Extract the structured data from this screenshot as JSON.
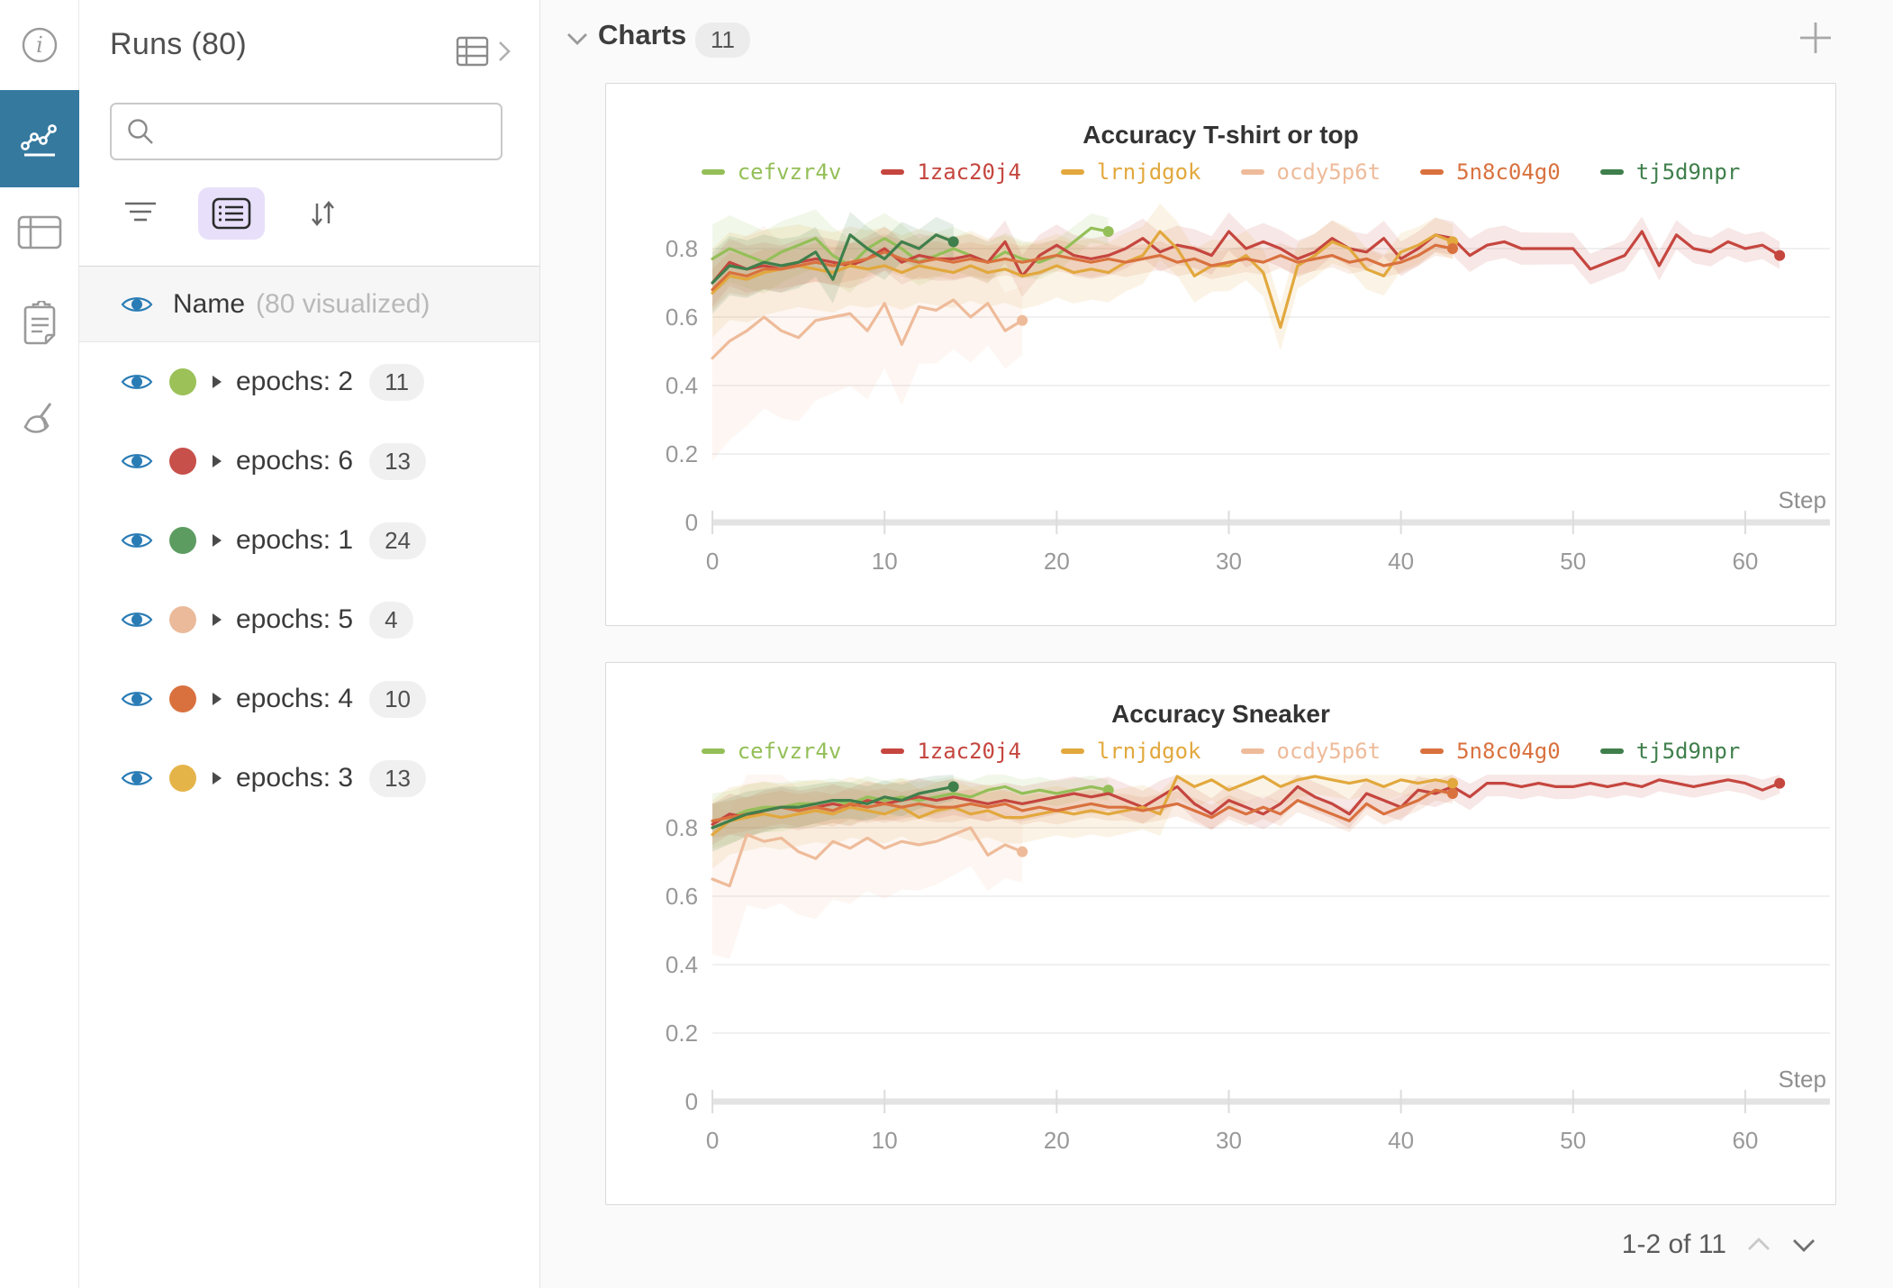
{
  "rail": {
    "items": [
      {
        "icon": "info-icon",
        "selected": false
      },
      {
        "icon": "line-chart-icon",
        "selected": true
      },
      {
        "icon": "table-icon",
        "selected": false
      },
      {
        "icon": "clipboard-icon",
        "selected": false
      },
      {
        "icon": "broom-icon",
        "selected": false
      }
    ]
  },
  "sidebar": {
    "title": "Runs (80)",
    "expand_icon": "table-expand-icon",
    "search": {
      "placeholder": "",
      "icon": "search-icon"
    },
    "toolbar": {
      "icons": [
        "filter-icon",
        "list-view-icon",
        "sort-icon"
      ]
    },
    "header_row": {
      "label": "Name",
      "suffix": "(80 visualized)",
      "eye_icon": "eye-icon"
    },
    "groups": [
      {
        "label": "epochs: 2",
        "count": "11",
        "color": "#9bc158"
      },
      {
        "label": "epochs: 6",
        "count": "13",
        "color": "#c7504a"
      },
      {
        "label": "epochs: 1",
        "count": "24",
        "color": "#5c9c61"
      },
      {
        "label": "epochs: 5",
        "count": "4",
        "color": "#eaba9a"
      },
      {
        "label": "epochs: 4",
        "count": "10",
        "color": "#d9713e"
      },
      {
        "label": "epochs: 3",
        "count": "13",
        "color": "#e5b449"
      }
    ]
  },
  "main": {
    "section": {
      "label": "Charts",
      "count": "11",
      "chevron_icon": "chevron-down-icon"
    },
    "add_panel_icon": "plus-icon",
    "pagination": {
      "label": "1-2 of 11",
      "up_icon": "chevron-up-icon",
      "down_icon": "chevron-down-icon"
    }
  },
  "colors": {
    "accent_blue": "#35799f",
    "eye_blue": "#2a7cb5",
    "purple_toggle_bg": "#e8e0fa",
    "panel_border": "#dadada",
    "grid_line": "#ececec",
    "axis_line": "#e3e3e3",
    "tick_text": "#999999"
  },
  "chart_data": [
    {
      "type": "line",
      "title": "Accuracy T-shirt or top",
      "xlabel": "Step",
      "ylabel": "",
      "xlim": [
        0,
        65
      ],
      "ylim": [
        0,
        0.95
      ],
      "xticks": [
        0,
        10,
        20,
        30,
        40,
        50,
        60
      ],
      "yticks": [
        0,
        0.2,
        0.4,
        0.6,
        0.8
      ],
      "grid": true,
      "legend_position": "top",
      "x_start": 0,
      "x_step": 1,
      "series": [
        {
          "name": "cefvzr4v",
          "color": "#94bf58",
          "band": [
            0.1,
            0.04
          ],
          "values": [
            0.77,
            0.8,
            0.78,
            0.76,
            0.79,
            0.81,
            0.83,
            0.78,
            0.75,
            0.8,
            0.83,
            0.8,
            0.76,
            0.78,
            0.8,
            0.78,
            0.76,
            0.79,
            0.77,
            0.76,
            0.78,
            0.82,
            0.86,
            0.85
          ]
        },
        {
          "name": "1zac20j4",
          "color": "#c5463f",
          "band": [
            0.07,
            0.04
          ],
          "values": [
            0.7,
            0.76,
            0.74,
            0.75,
            0.74,
            0.76,
            0.77,
            0.76,
            0.75,
            0.77,
            0.8,
            0.76,
            0.78,
            0.77,
            0.77,
            0.78,
            0.76,
            0.82,
            0.72,
            0.78,
            0.81,
            0.78,
            0.77,
            0.78,
            0.8,
            0.83,
            0.79,
            0.81,
            0.8,
            0.78,
            0.85,
            0.8,
            0.82,
            0.8,
            0.77,
            0.79,
            0.83,
            0.8,
            0.79,
            0.83,
            0.77,
            0.8,
            0.84,
            0.83,
            0.78,
            0.81,
            0.82,
            0.8,
            0.8,
            0.8,
            0.8,
            0.74,
            0.76,
            0.78,
            0.85,
            0.75,
            0.84,
            0.8,
            0.79,
            0.82,
            0.8,
            0.81,
            0.78
          ]
        },
        {
          "name": "lrnjdgok",
          "color": "#e2a83d",
          "band": [
            0.13,
            0.05
          ],
          "values": [
            0.67,
            0.72,
            0.71,
            0.73,
            0.74,
            0.75,
            0.74,
            0.73,
            0.75,
            0.74,
            0.75,
            0.73,
            0.75,
            0.74,
            0.73,
            0.75,
            0.73,
            0.74,
            0.72,
            0.73,
            0.75,
            0.73,
            0.74,
            0.73,
            0.76,
            0.78,
            0.85,
            0.8,
            0.72,
            0.75,
            0.75,
            0.78,
            0.73,
            0.57,
            0.75,
            0.78,
            0.82,
            0.8,
            0.74,
            0.72,
            0.79,
            0.81,
            0.84,
            0.82
          ]
        },
        {
          "name": "ocdy5p6t",
          "color": "#eebb9a",
          "band": [
            0.3,
            0.1
          ],
          "values": [
            0.48,
            0.53,
            0.56,
            0.6,
            0.56,
            0.54,
            0.59,
            0.6,
            0.61,
            0.56,
            0.64,
            0.52,
            0.63,
            0.62,
            0.65,
            0.6,
            0.64,
            0.56,
            0.59
          ]
        },
        {
          "name": "5n8c04g0",
          "color": "#d9713e",
          "band": [
            0.06,
            0.03
          ],
          "values": [
            0.68,
            0.73,
            0.72,
            0.74,
            0.74,
            0.75,
            0.76,
            0.75,
            0.76,
            0.77,
            0.79,
            0.77,
            0.76,
            0.77,
            0.76,
            0.77,
            0.76,
            0.77,
            0.76,
            0.77,
            0.78,
            0.77,
            0.76,
            0.77,
            0.76,
            0.77,
            0.78,
            0.76,
            0.77,
            0.75,
            0.76,
            0.77,
            0.76,
            0.78,
            0.76,
            0.77,
            0.78,
            0.76,
            0.77,
            0.75,
            0.76,
            0.78,
            0.81,
            0.8
          ]
        },
        {
          "name": "tj5d9npr",
          "color": "#3f7f4c",
          "band": [
            0.09,
            0.05
          ],
          "values": [
            0.7,
            0.75,
            0.74,
            0.76,
            0.75,
            0.76,
            0.79,
            0.71,
            0.84,
            0.8,
            0.77,
            0.82,
            0.8,
            0.84,
            0.82
          ]
        }
      ]
    },
    {
      "type": "line",
      "title": "Accuracy Sneaker",
      "xlabel": "Step",
      "ylabel": "",
      "xlim": [
        0,
        65
      ],
      "ylim": [
        0,
        0.98
      ],
      "xticks": [
        0,
        10,
        20,
        30,
        40,
        50,
        60
      ],
      "yticks": [
        0,
        0.2,
        0.4,
        0.6,
        0.8
      ],
      "grid": true,
      "legend_position": "top",
      "x_start": 0,
      "x_step": 1,
      "series": [
        {
          "name": "cefvzr4v",
          "color": "#94bf58",
          "band": [
            0.08,
            0.03
          ],
          "values": [
            0.82,
            0.83,
            0.85,
            0.86,
            0.86,
            0.87,
            0.87,
            0.88,
            0.87,
            0.89,
            0.88,
            0.89,
            0.88,
            0.89,
            0.9,
            0.89,
            0.91,
            0.92,
            0.9,
            0.91,
            0.9,
            0.91,
            0.92,
            0.91
          ]
        },
        {
          "name": "1zac20j4",
          "color": "#c5463f",
          "band": [
            0.06,
            0.03
          ],
          "values": [
            0.81,
            0.84,
            0.83,
            0.85,
            0.86,
            0.85,
            0.86,
            0.87,
            0.86,
            0.88,
            0.87,
            0.88,
            0.89,
            0.88,
            0.89,
            0.88,
            0.87,
            0.88,
            0.87,
            0.88,
            0.89,
            0.9,
            0.89,
            0.9,
            0.88,
            0.86,
            0.89,
            0.92,
            0.87,
            0.84,
            0.88,
            0.86,
            0.84,
            0.87,
            0.92,
            0.89,
            0.87,
            0.84,
            0.9,
            0.88,
            0.86,
            0.91,
            0.9,
            0.92,
            0.89,
            0.93,
            0.93,
            0.92,
            0.93,
            0.92,
            0.92,
            0.93,
            0.92,
            0.93,
            0.92,
            0.94,
            0.93,
            0.92,
            0.93,
            0.94,
            0.93,
            0.91,
            0.93
          ]
        },
        {
          "name": "lrnjdgok",
          "color": "#e2a83d",
          "band": [
            0.1,
            0.04
          ],
          "values": [
            0.78,
            0.82,
            0.83,
            0.84,
            0.83,
            0.84,
            0.85,
            0.84,
            0.86,
            0.85,
            0.84,
            0.86,
            0.83,
            0.85,
            0.86,
            0.84,
            0.85,
            0.83,
            0.83,
            0.84,
            0.85,
            0.84,
            0.85,
            0.84,
            0.85,
            0.86,
            0.84,
            0.95,
            0.92,
            0.94,
            0.91,
            0.93,
            0.95,
            0.92,
            0.94,
            0.95,
            0.94,
            0.93,
            0.94,
            0.92,
            0.94,
            0.93,
            0.94,
            0.93
          ]
        },
        {
          "name": "ocdy5p6t",
          "color": "#eebb9a",
          "band": [
            0.22,
            0.09
          ],
          "values": [
            0.65,
            0.63,
            0.78,
            0.76,
            0.77,
            0.73,
            0.71,
            0.76,
            0.74,
            0.77,
            0.74,
            0.76,
            0.75,
            0.76,
            0.78,
            0.8,
            0.72,
            0.75,
            0.73
          ]
        },
        {
          "name": "5n8c04g0",
          "color": "#d9713e",
          "band": [
            0.05,
            0.03
          ],
          "values": [
            0.82,
            0.83,
            0.84,
            0.85,
            0.86,
            0.85,
            0.86,
            0.85,
            0.87,
            0.86,
            0.87,
            0.86,
            0.87,
            0.86,
            0.86,
            0.87,
            0.86,
            0.87,
            0.85,
            0.86,
            0.85,
            0.86,
            0.87,
            0.86,
            0.86,
            0.85,
            0.86,
            0.87,
            0.85,
            0.83,
            0.86,
            0.84,
            0.86,
            0.84,
            0.88,
            0.86,
            0.84,
            0.82,
            0.87,
            0.84,
            0.86,
            0.88,
            0.91,
            0.9
          ]
        },
        {
          "name": "tj5d9npr",
          "color": "#3f7f4c",
          "band": [
            0.07,
            0.04
          ],
          "values": [
            0.8,
            0.82,
            0.84,
            0.85,
            0.86,
            0.86,
            0.87,
            0.88,
            0.88,
            0.87,
            0.89,
            0.88,
            0.9,
            0.91,
            0.92
          ]
        }
      ]
    }
  ]
}
